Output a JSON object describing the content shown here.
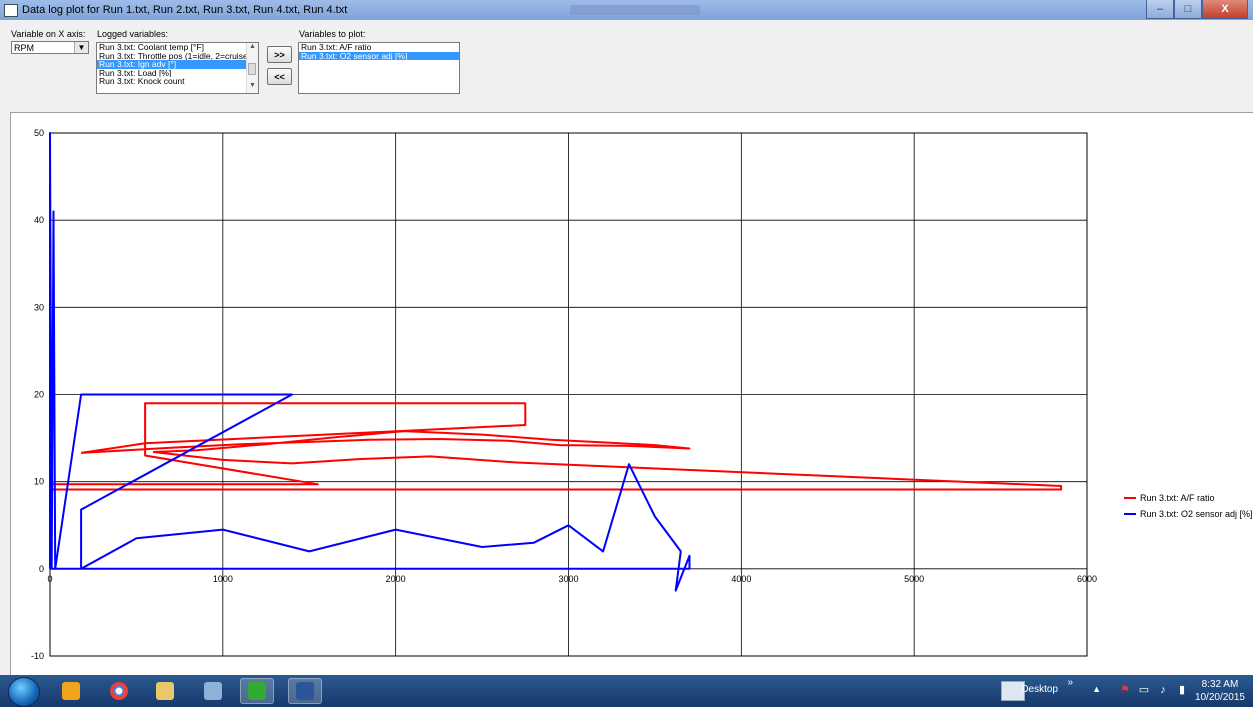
{
  "window": {
    "title": "Data log plot for Run 1.txt, Run 2.txt, Run 3.txt, Run 4.txt, Run 4.txt",
    "buttons": {
      "minimize": "–",
      "maximize": "□",
      "close": "X"
    }
  },
  "controls": {
    "x_axis_label": "Variable on X axis:",
    "x_axis_value": "RPM",
    "logged_label": "Logged variables:",
    "logged_items": [
      "Run 3.txt: Coolant temp [°F]",
      "Run 3.txt: Throttle pos (1=idle, 2=cruise",
      "Run 3.txt: Ign adv [°]",
      "Run 3.txt: Load [%]",
      "Run 3.txt: Knock count"
    ],
    "logged_selected_index": 2,
    "add_button": ">>",
    "remove_button": "<<",
    "plot_label": "Variables to plot:",
    "plot_items": [
      "Run 3.txt: A/F ratio",
      "Run 3.txt: O2 sensor adj [%]"
    ],
    "plot_selected_index": 1
  },
  "chart_data": {
    "type": "line",
    "xlim": [
      0,
      6000
    ],
    "ylim": [
      -10,
      50
    ],
    "x_ticks": [
      "0",
      "1000",
      "2000",
      "3000",
      "4000",
      "5000",
      "6000"
    ],
    "y_ticks": [
      "-10",
      "0",
      "10",
      "20",
      "30",
      "40",
      "50"
    ],
    "grid": true,
    "legend_position": "right",
    "series": [
      {
        "name": "Run 3.txt: A/F ratio",
        "color": "#ff0000",
        "x": [
          180,
          700,
          1100,
          1550,
          1850,
          2250,
          2650,
          2950,
          3350,
          3700,
          3500,
          3200,
          2900,
          2500,
          2050,
          1650,
          1250,
          850,
          600,
          1000,
          1400,
          1800,
          2200,
          2700,
          5850,
          5850,
          0,
          0,
          1550,
          550,
          550,
          2750,
          2750,
          550,
          180
        ],
        "y": [
          13.3,
          13.9,
          14.3,
          14.6,
          14.8,
          14.9,
          14.7,
          14.2,
          14.1,
          13.8,
          14.2,
          14.5,
          14.8,
          15.4,
          15.8,
          15.1,
          14.3,
          13.6,
          13.4,
          12.5,
          12.1,
          12.6,
          12.9,
          12.2,
          9.5,
          9.1,
          9.1,
          9.7,
          9.7,
          13.0,
          19.0,
          19.0,
          16.5,
          14.4,
          13.3
        ]
      },
      {
        "name": "Run 3.txt: O2 sensor adj [%]",
        "color": "#0000ff",
        "x": [
          0,
          0,
          10,
          20,
          30,
          180,
          180,
          1400,
          180,
          180,
          500,
          1000,
          1500,
          2000,
          2500,
          2800,
          3000,
          3200,
          3350,
          3500,
          3650,
          3620,
          3700,
          3700,
          0
        ],
        "y": [
          0,
          50,
          0,
          41,
          0,
          20,
          20,
          20,
          6.8,
          0,
          3.5,
          4.5,
          2.0,
          4.5,
          2.5,
          3.0,
          5.0,
          2.0,
          12.0,
          6.0,
          2.0,
          -2.5,
          1.5,
          0,
          0
        ]
      }
    ]
  },
  "taskbar": {
    "desktop_label": "Desktop",
    "time": "8:32 AM",
    "date": "10/20/2015",
    "chevron": "»",
    "tray_up": "▲"
  }
}
